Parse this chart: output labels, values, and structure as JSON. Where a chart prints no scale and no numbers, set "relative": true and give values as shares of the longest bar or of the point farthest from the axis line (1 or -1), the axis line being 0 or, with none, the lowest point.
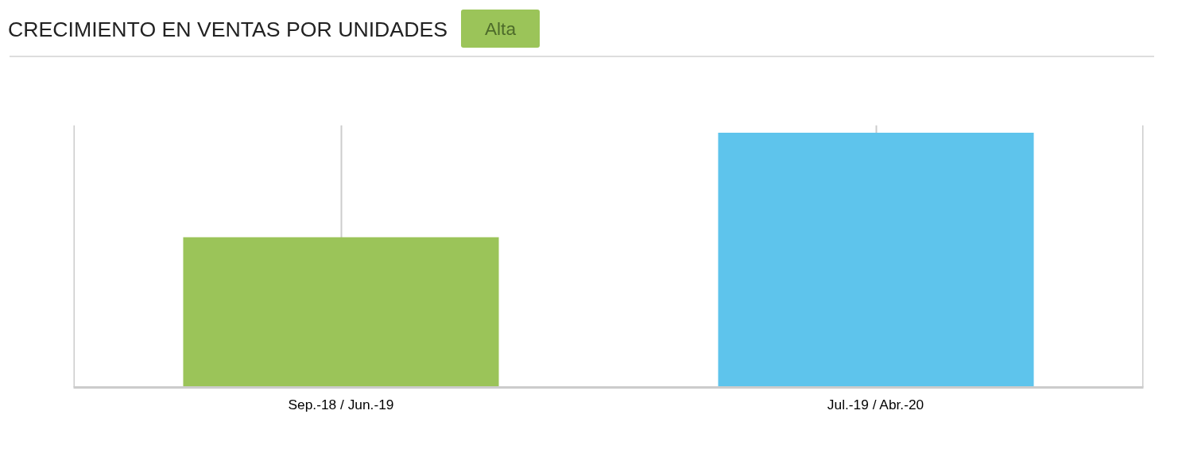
{
  "chart_data": {
    "type": "bar",
    "title": "CRECIMIENTO EN VENTAS POR UNIDADES",
    "subtitle": "Alta",
    "categories": [
      "Sep.-18 / Jun.-19",
      "Jul.-19 / Abr.-20"
    ],
    "values": [
      0.59,
      1
    ],
    "colors": [
      "#9bc459",
      "#5ec4ec"
    ],
    "relative": true,
    "grid": "x"
  }
}
